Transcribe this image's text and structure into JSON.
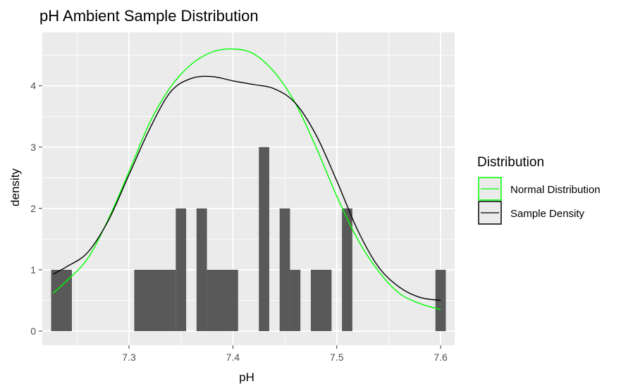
{
  "chart_data": {
    "type": "histogram",
    "title": "pH Ambient Sample Distribution",
    "xlabel": "pH",
    "ylabel": "density",
    "xlim": [
      7.2165,
      7.6135
    ],
    "ylim": [
      -0.23,
      4.87
    ],
    "x_ticks": [
      7.3,
      7.4,
      7.5,
      7.6
    ],
    "x_tick_labels": [
      "7.3",
      "7.4",
      "7.5",
      "7.6"
    ],
    "y_ticks": [
      0,
      1,
      2,
      3,
      4
    ],
    "y_tick_labels": [
      "0",
      "1",
      "2",
      "3",
      "4"
    ],
    "grid": true,
    "bar_color": "#595959",
    "panel_background": "#ebebeb",
    "bins": [
      {
        "x0": 7.225,
        "x1": 7.245,
        "count": 1
      },
      {
        "x0": 7.305,
        "x1": 7.345,
        "count": 1
      },
      {
        "x0": 7.345,
        "x1": 7.355,
        "count": 2
      },
      {
        "x0": 7.365,
        "x1": 7.375,
        "count": 2
      },
      {
        "x0": 7.375,
        "x1": 7.405,
        "count": 1
      },
      {
        "x0": 7.425,
        "x1": 7.435,
        "count": 3
      },
      {
        "x0": 7.445,
        "x1": 7.455,
        "count": 2
      },
      {
        "x0": 7.455,
        "x1": 7.465,
        "count": 1
      },
      {
        "x0": 7.475,
        "x1": 7.495,
        "count": 1
      },
      {
        "x0": 7.505,
        "x1": 7.515,
        "count": 2
      },
      {
        "x0": 7.595,
        "x1": 7.605,
        "count": 1
      }
    ],
    "series": [
      {
        "name": "Normal Distribution",
        "color": "#00ff00",
        "x": [
          7.227,
          7.24,
          7.26,
          7.28,
          7.3,
          7.32,
          7.34,
          7.36,
          7.38,
          7.4,
          7.42,
          7.44,
          7.46,
          7.48,
          7.5,
          7.52,
          7.54,
          7.56,
          7.58,
          7.6
        ],
        "y": [
          0.62,
          0.82,
          1.18,
          1.82,
          2.6,
          3.4,
          3.98,
          4.35,
          4.55,
          4.6,
          4.52,
          4.22,
          3.72,
          3.0,
          2.2,
          1.5,
          0.98,
          0.62,
          0.45,
          0.35
        ]
      },
      {
        "name": "Sample Density",
        "color": "#000000",
        "x": [
          7.227,
          7.24,
          7.26,
          7.28,
          7.3,
          7.32,
          7.34,
          7.36,
          7.38,
          7.4,
          7.42,
          7.44,
          7.46,
          7.48,
          7.5,
          7.52,
          7.54,
          7.56,
          7.58,
          7.6
        ],
        "y": [
          0.93,
          1.05,
          1.28,
          1.8,
          2.55,
          3.3,
          3.9,
          4.12,
          4.15,
          4.08,
          4.02,
          3.95,
          3.72,
          3.2,
          2.45,
          1.65,
          1.05,
          0.72,
          0.55,
          0.5
        ]
      }
    ],
    "legend": {
      "title": "Distribution",
      "position": "right",
      "entries": [
        "Normal Distribution",
        "Sample Density"
      ]
    }
  }
}
